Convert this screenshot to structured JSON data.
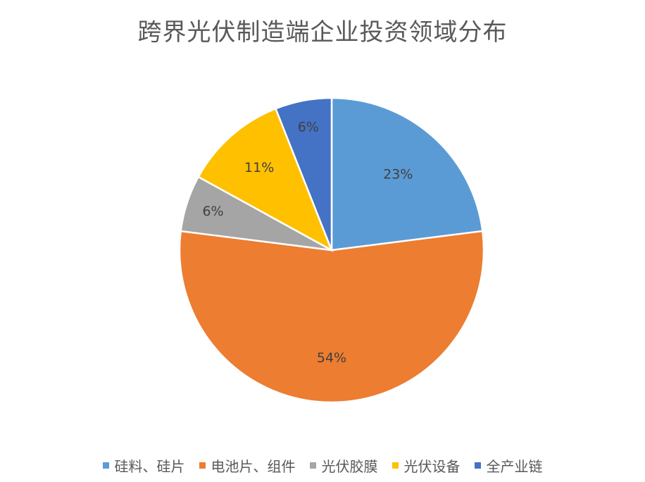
{
  "chart_data": {
    "type": "pie",
    "title": "跨界光伏制造端企业投资领域分布",
    "categories": [
      "硅料、硅片",
      "电池片、组件",
      "光伏胶膜",
      "光伏设备",
      "全产业链"
    ],
    "values": [
      23,
      54,
      6,
      11,
      6
    ],
    "labels": [
      "23%",
      "54%",
      "6%",
      "11%",
      "6%"
    ],
    "colors": [
      "#5b9bd5",
      "#ed7d31",
      "#a5a5a5",
      "#ffc000",
      "#4472c4"
    ],
    "legend_position": "bottom"
  }
}
